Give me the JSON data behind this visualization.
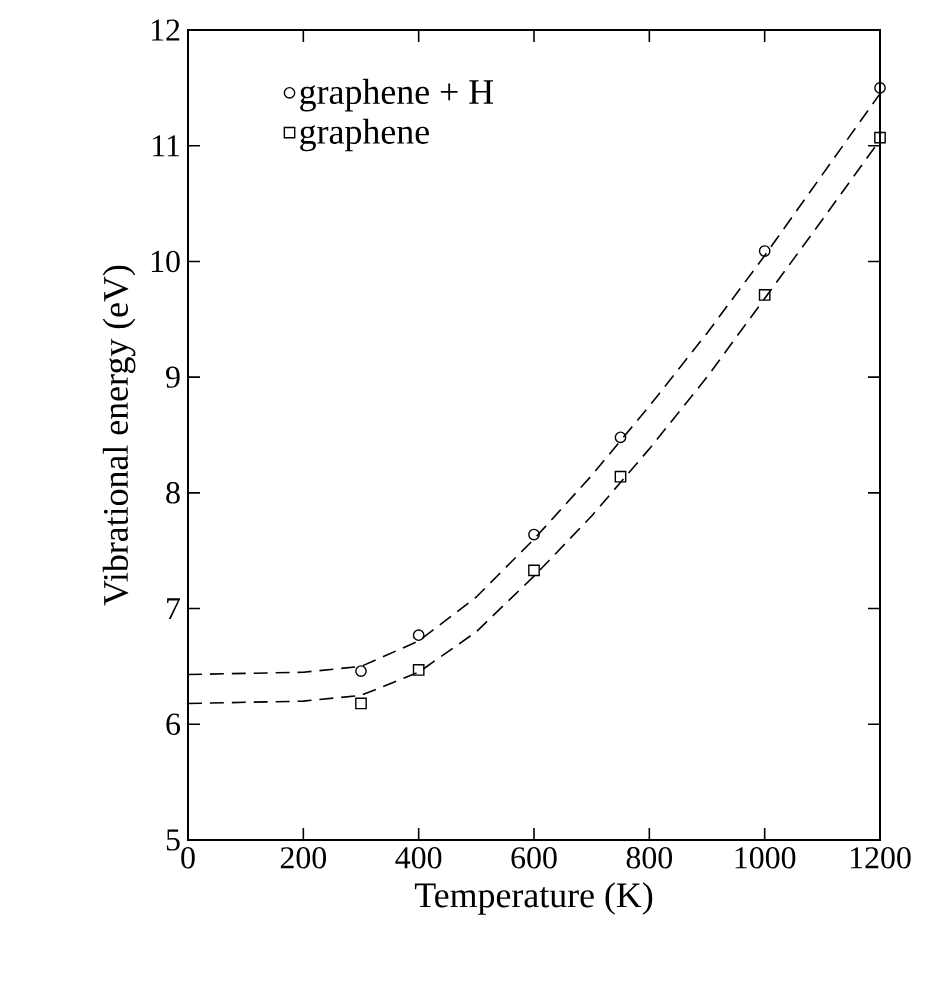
{
  "chart_data": {
    "type": "scatter",
    "xlabel": "Temperature (K)",
    "ylabel": "Vibrational  energy  (eV)",
    "xlim": [
      0,
      1200
    ],
    "ylim": [
      5,
      12
    ],
    "xticks": [
      0,
      200,
      400,
      600,
      800,
      1000,
      1200
    ],
    "yticks": [
      5,
      6,
      7,
      8,
      9,
      10,
      11,
      12
    ],
    "legend": "top left",
    "grid": false,
    "series": [
      {
        "name": "graphene + H",
        "marker": "circle",
        "color": "#000000",
        "x": [
          300,
          400,
          600,
          750,
          1000,
          1200
        ],
        "values": [
          6.46,
          6.77,
          7.64,
          8.48,
          10.09,
          11.5
        ]
      },
      {
        "name": "graphene",
        "marker": "square",
        "color": "#000000",
        "x": [
          300,
          400,
          600,
          750,
          1000,
          1200
        ],
        "values": [
          6.18,
          6.47,
          7.33,
          8.14,
          9.71,
          11.07
        ]
      },
      {
        "type": "line",
        "line_style": "dashed",
        "marker": "none",
        "color": "#000000",
        "x": [
          0,
          200,
          300,
          400,
          500,
          600,
          700,
          800,
          900,
          1000,
          1100,
          1200
        ],
        "values": [
          6.43,
          6.45,
          6.5,
          6.72,
          7.1,
          7.6,
          8.15,
          8.75,
          9.38,
          10.05,
          10.75,
          11.45
        ]
      },
      {
        "type": "line",
        "line_style": "dashed",
        "marker": "none",
        "color": "#000000",
        "x": [
          0,
          200,
          300,
          400,
          500,
          600,
          700,
          800,
          900,
          1000,
          1100,
          1200
        ],
        "values": [
          6.18,
          6.2,
          6.25,
          6.45,
          6.8,
          7.28,
          7.8,
          8.38,
          9.0,
          9.68,
          10.36,
          11.05
        ]
      }
    ]
  }
}
